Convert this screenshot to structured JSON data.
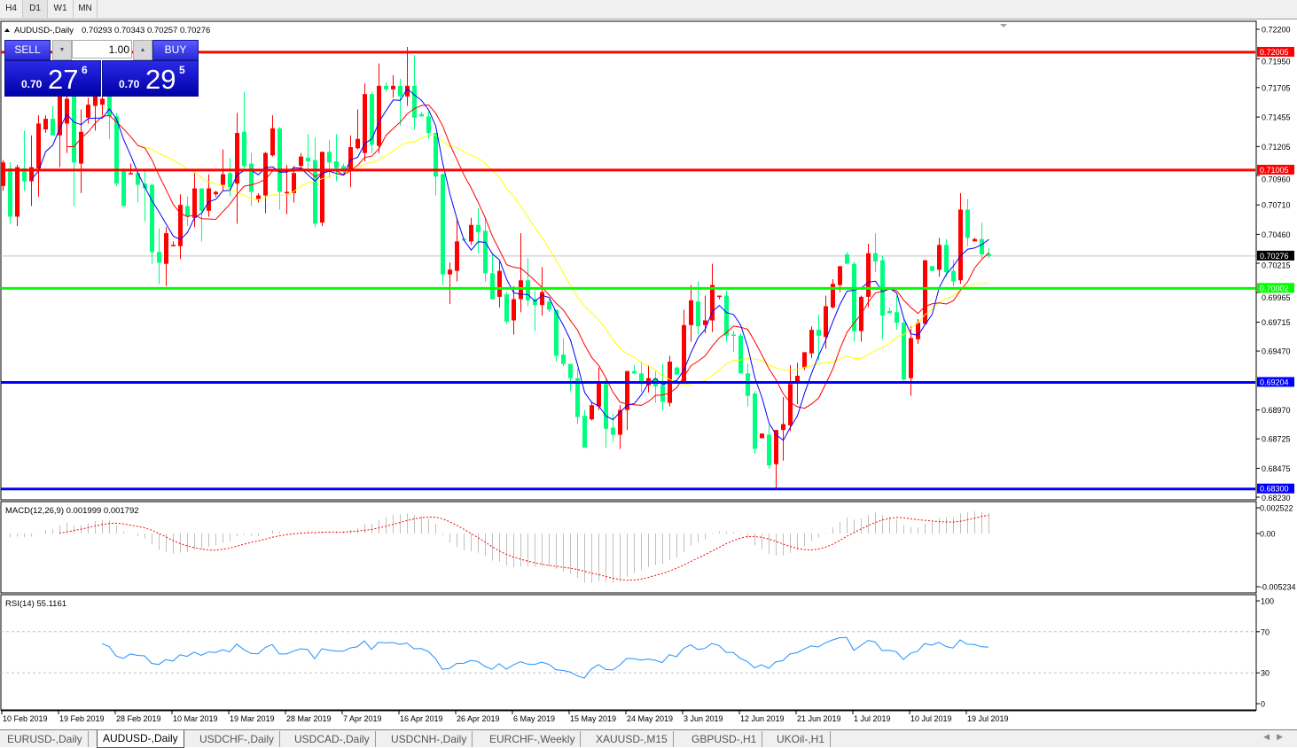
{
  "toolbar": {
    "timeframes": [
      {
        "label": "H4",
        "active": false
      },
      {
        "label": "D1",
        "active": true
      },
      {
        "label": "W1",
        "active": false
      },
      {
        "label": "MN",
        "active": false
      }
    ]
  },
  "chart_header": {
    "symbol": "AUDUSD-,Daily",
    "ohlc": "0.70293 0.70343 0.70257 0.70276"
  },
  "trade_panel": {
    "sell_label": "SELL",
    "buy_label": "BUY",
    "lot": "1.00",
    "sell_price": {
      "prefix": "0.70",
      "big": "27",
      "sup": "6"
    },
    "buy_price": {
      "prefix": "0.70",
      "big": "29",
      "sup": "5"
    }
  },
  "macd_label": "MACD(12,26,9) 0.001999 0.001792",
  "rsi_label": "RSI(14) 55.1161",
  "tabs": [
    {
      "label": "EURUSD-,Daily",
      "active": false
    },
    {
      "label": "AUDUSD-,Daily",
      "active": true
    },
    {
      "label": "USDCHF-,Daily",
      "active": false
    },
    {
      "label": "USDCAD-,Daily",
      "active": false
    },
    {
      "label": "USDCNH-,Daily",
      "active": false
    },
    {
      "label": "EURCHF-,Weekly",
      "active": false
    },
    {
      "label": "XAUUSD-,M15",
      "active": false
    },
    {
      "label": "GBPUSD-,H1",
      "active": false
    },
    {
      "label": "UKOil-,H1",
      "active": false
    }
  ],
  "colors": {
    "bull": "#ff0000",
    "bear": "#00ff7f",
    "ma_fast": "#0000ff",
    "ma_mid": "#ff0000",
    "ma_slow": "#ffff00",
    "macd_hist": "#c0c0c0",
    "macd_signal": "#ff0000",
    "rsi": "#1e90ff",
    "price_line": "#c0c0c0"
  },
  "chart_data": {
    "type": "candlestick",
    "symbol": "AUDUSD-",
    "timeframe": "Daily",
    "ylim": [
      0.6823,
      0.722
    ],
    "y_ticks": [
      "0.72200",
      "0.71950",
      "0.71705",
      "0.71455",
      "0.71205",
      "0.70960",
      "0.70710",
      "0.70460",
      "0.70215",
      "0.69965",
      "0.69715",
      "0.69470",
      "0.68970",
      "0.68725",
      "0.68475",
      "0.68230"
    ],
    "x_tick_labels": [
      "10 Feb 2019",
      "19 Feb 2019",
      "28 Feb 2019",
      "10 Mar 2019",
      "19 Mar 2019",
      "28 Mar 2019",
      "7 Apr 2019",
      "16 Apr 2019",
      "26 Apr 2019",
      "6 May 2019",
      "15 May 2019",
      "24 May 2019",
      "3 Jun 2019",
      "12 Jun 2019",
      "21 Jun 2019",
      "1 Jul 2019",
      "10 Jul 2019",
      "19 Jul 2019"
    ],
    "current_price": "0.70276",
    "horizontal_levels": [
      {
        "price": "0.72005",
        "color": "#ff0000"
      },
      {
        "price": "0.71005",
        "color": "#ff0000"
      },
      {
        "price": "0.70002",
        "color": "#00ff00"
      },
      {
        "price": "0.69204",
        "color": "#0000ff"
      },
      {
        "price": "0.68300",
        "color": "#0000ff"
      }
    ],
    "ohlc": [
      [
        0.7087,
        0.7109,
        0.7083,
        0.7107
      ],
      [
        0.7102,
        0.7107,
        0.7055,
        0.7061
      ],
      [
        0.7061,
        0.7105,
        0.7053,
        0.7103
      ],
      [
        0.7102,
        0.7134,
        0.7083,
        0.7091
      ],
      [
        0.7091,
        0.713,
        0.707,
        0.7103
      ],
      [
        0.7102,
        0.7147,
        0.7078,
        0.714
      ],
      [
        0.7135,
        0.7147,
        0.7132,
        0.7144
      ],
      [
        0.7144,
        0.7155,
        0.713,
        0.713
      ],
      [
        0.713,
        0.7169,
        0.7103,
        0.7164
      ],
      [
        0.714,
        0.7166,
        0.7115,
        0.7161
      ],
      [
        0.7164,
        0.7167,
        0.707,
        0.7107
      ],
      [
        0.7106,
        0.7152,
        0.7081,
        0.7133
      ],
      [
        0.7145,
        0.7162,
        0.714,
        0.7156
      ],
      [
        0.7155,
        0.7169,
        0.7134,
        0.7166
      ],
      [
        0.7156,
        0.7166,
        0.7147,
        0.7161
      ],
      [
        0.7164,
        0.7169,
        0.7127,
        0.7146
      ],
      [
        0.7146,
        0.7149,
        0.7087,
        0.7089
      ],
      [
        0.71,
        0.7102,
        0.707,
        0.707
      ],
      [
        0.7097,
        0.7106,
        0.7097,
        0.7098
      ],
      [
        0.7098,
        0.71,
        0.7073,
        0.7088
      ],
      [
        0.7089,
        0.71,
        0.7057,
        0.7085
      ],
      [
        0.7088,
        0.7089,
        0.7021,
        0.7031
      ],
      [
        0.7031,
        0.7051,
        0.7004,
        0.7022
      ],
      [
        0.7021,
        0.7052,
        0.7002,
        0.7047
      ],
      [
        0.7037,
        0.704,
        0.7036,
        0.7037
      ],
      [
        0.7036,
        0.708,
        0.7025,
        0.7071
      ],
      [
        0.707,
        0.7078,
        0.7053,
        0.7061
      ],
      [
        0.706,
        0.7098,
        0.7052,
        0.7085
      ],
      [
        0.7085,
        0.7085,
        0.704,
        0.7066
      ],
      [
        0.7066,
        0.7097,
        0.7061,
        0.7085
      ],
      [
        0.708,
        0.7083,
        0.7078,
        0.7082
      ],
      [
        0.7088,
        0.7118,
        0.7083,
        0.7097
      ],
      [
        0.7098,
        0.7111,
        0.7078,
        0.7086
      ],
      [
        0.7089,
        0.7149,
        0.7055,
        0.7132
      ],
      [
        0.7133,
        0.7167,
        0.7102,
        0.7104
      ],
      [
        0.7106,
        0.7115,
        0.707,
        0.7082
      ],
      [
        0.7076,
        0.7081,
        0.7073,
        0.7079
      ],
      [
        0.7079,
        0.7116,
        0.7064,
        0.7115
      ],
      [
        0.7113,
        0.7147,
        0.7112,
        0.7136
      ],
      [
        0.7136,
        0.7137,
        0.7067,
        0.7082
      ],
      [
        0.7082,
        0.7105,
        0.7063,
        0.7082
      ],
      [
        0.7081,
        0.7104,
        0.7073,
        0.7098
      ],
      [
        0.7104,
        0.7115,
        0.7102,
        0.7112
      ],
      [
        0.7111,
        0.7131,
        0.71,
        0.7108
      ],
      [
        0.7109,
        0.7128,
        0.7052,
        0.7055
      ],
      [
        0.7056,
        0.7116,
        0.7053,
        0.7116
      ],
      [
        0.7116,
        0.7126,
        0.7094,
        0.7107
      ],
      [
        0.7108,
        0.7131,
        0.7091,
        0.7102
      ],
      [
        0.7104,
        0.7106,
        0.7096,
        0.7101
      ],
      [
        0.71,
        0.713,
        0.7086,
        0.712
      ],
      [
        0.7119,
        0.7152,
        0.7118,
        0.7127
      ],
      [
        0.7115,
        0.7174,
        0.7108,
        0.7165
      ],
      [
        0.7165,
        0.7167,
        0.7115,
        0.7122
      ],
      [
        0.7121,
        0.7191,
        0.7115,
        0.7172
      ],
      [
        0.7172,
        0.7175,
        0.7167,
        0.7169
      ],
      [
        0.7169,
        0.7181,
        0.7162,
        0.7172
      ],
      [
        0.7172,
        0.7178,
        0.7138,
        0.7163
      ],
      [
        0.7163,
        0.7205,
        0.7155,
        0.7172
      ],
      [
        0.7172,
        0.7198,
        0.7135,
        0.7145
      ],
      [
        0.7148,
        0.715,
        0.7146,
        0.7146
      ],
      [
        0.7146,
        0.715,
        0.7127,
        0.7132
      ],
      [
        0.7132,
        0.7132,
        0.7079,
        0.7095
      ],
      [
        0.7097,
        0.7098,
        0.7003,
        0.7012
      ],
      [
        0.7012,
        0.7022,
        0.6987,
        0.7016
      ],
      [
        0.7015,
        0.706,
        0.7006,
        0.704
      ],
      [
        0.7042,
        0.7043,
        0.704,
        0.7041
      ],
      [
        0.704,
        0.706,
        0.7037,
        0.7054
      ],
      [
        0.7054,
        0.7068,
        0.703,
        0.7048
      ],
      [
        0.7049,
        0.7061,
        0.7006,
        0.7013
      ],
      [
        0.7013,
        0.7029,
        0.6991,
        0.6991
      ],
      [
        0.6993,
        0.7023,
        0.6984,
        0.7015
      ],
      [
        0.6995,
        0.6997,
        0.697,
        0.6972
      ],
      [
        0.6973,
        0.7002,
        0.6961,
        0.6991
      ],
      [
        0.6991,
        0.7047,
        0.698,
        0.7007
      ],
      [
        0.7007,
        0.7026,
        0.6985,
        0.699
      ],
      [
        0.6991,
        0.6998,
        0.6964,
        0.6986
      ],
      [
        0.6986,
        0.7018,
        0.6977,
        0.6997
      ],
      [
        0.6989,
        0.6991,
        0.698,
        0.6982
      ],
      [
        0.6982,
        0.6982,
        0.6938,
        0.6943
      ],
      [
        0.6944,
        0.6958,
        0.6934,
        0.6936
      ],
      [
        0.6936,
        0.6936,
        0.6913,
        0.6924
      ],
      [
        0.6924,
        0.6932,
        0.6885,
        0.6891
      ],
      [
        0.6892,
        0.6897,
        0.6865,
        0.6865
      ],
      [
        0.6889,
        0.6904,
        0.6888,
        0.6901
      ],
      [
        0.69,
        0.6933,
        0.6897,
        0.6921
      ],
      [
        0.6919,
        0.6923,
        0.6865,
        0.6881
      ],
      [
        0.6882,
        0.6894,
        0.687,
        0.6876
      ],
      [
        0.6876,
        0.6901,
        0.6864,
        0.6897
      ],
      [
        0.6897,
        0.693,
        0.688,
        0.693
      ],
      [
        0.693,
        0.6935,
        0.6927,
        0.6928
      ],
      [
        0.6928,
        0.6938,
        0.6912,
        0.6919
      ],
      [
        0.6918,
        0.6935,
        0.6912,
        0.6924
      ],
      [
        0.6924,
        0.693,
        0.6903,
        0.6917
      ],
      [
        0.6918,
        0.6936,
        0.6897,
        0.6904
      ],
      [
        0.6903,
        0.6943,
        0.69,
        0.6938
      ],
      [
        0.6933,
        0.6934,
        0.6927,
        0.6927
      ],
      [
        0.6921,
        0.6982,
        0.692,
        0.6969
      ],
      [
        0.6969,
        0.7003,
        0.6955,
        0.699
      ],
      [
        0.6989,
        0.7006,
        0.6961,
        0.6968
      ],
      [
        0.6969,
        0.6994,
        0.6962,
        0.6973
      ],
      [
        0.6973,
        0.7021,
        0.6963,
        0.7003
      ],
      [
        0.6993,
        0.6994,
        0.6991,
        0.6994
      ],
      [
        0.6994,
        0.6998,
        0.6955,
        0.696
      ],
      [
        0.6961,
        0.6964,
        0.6946,
        0.696
      ],
      [
        0.696,
        0.6962,
        0.6928,
        0.6928
      ],
      [
        0.6928,
        0.6936,
        0.69,
        0.6909
      ],
      [
        0.6911,
        0.6913,
        0.686,
        0.6864
      ],
      [
        0.6873,
        0.6877,
        0.6873,
        0.6877
      ],
      [
        0.6876,
        0.6884,
        0.6847,
        0.685
      ],
      [
        0.6851,
        0.688,
        0.683,
        0.688
      ],
      [
        0.688,
        0.6908,
        0.6854,
        0.6885
      ],
      [
        0.6884,
        0.6935,
        0.6879,
        0.6919
      ],
      [
        0.6921,
        0.6937,
        0.6902,
        0.6926
      ],
      [
        0.6933,
        0.6946,
        0.6931,
        0.6946
      ],
      [
        0.6945,
        0.6968,
        0.6941,
        0.6965
      ],
      [
        0.6965,
        0.6978,
        0.6939,
        0.696
      ],
      [
        0.6959,
        0.6994,
        0.6949,
        0.6985
      ],
      [
        0.6984,
        0.7008,
        0.6983,
        0.7004
      ],
      [
        0.7003,
        0.7019,
        0.6997,
        0.7019
      ],
      [
        0.7029,
        0.7031,
        0.7021,
        0.7021
      ],
      [
        0.7021,
        0.7023,
        0.6955,
        0.6964
      ],
      [
        0.6964,
        0.6994,
        0.6955,
        0.6993
      ],
      [
        0.6993,
        0.7038,
        0.6984,
        0.703
      ],
      [
        0.703,
        0.7047,
        0.7014,
        0.7023
      ],
      [
        0.7024,
        0.7028,
        0.6957,
        0.6977
      ],
      [
        0.6981,
        0.6984,
        0.6979,
        0.6979
      ],
      [
        0.698,
        0.6994,
        0.6965,
        0.6971
      ],
      [
        0.6971,
        0.6974,
        0.6922,
        0.6923
      ],
      [
        0.6924,
        0.6968,
        0.6909,
        0.6958
      ],
      [
        0.6957,
        0.6974,
        0.6953,
        0.6971
      ],
      [
        0.697,
        0.7024,
        0.697,
        0.7024
      ],
      [
        0.7019,
        0.7019,
        0.7015,
        0.7015
      ],
      [
        0.7016,
        0.7043,
        0.701,
        0.7037
      ],
      [
        0.7037,
        0.7042,
        0.701,
        0.7014
      ],
      [
        0.7015,
        0.7024,
        0.7002,
        0.7006
      ],
      [
        0.7007,
        0.7081,
        0.7004,
        0.7067
      ],
      [
        0.7067,
        0.7076,
        0.7036,
        0.7043
      ],
      [
        0.704,
        0.7043,
        0.704,
        0.7042
      ],
      [
        0.7042,
        0.7056,
        0.7026,
        0.7029
      ],
      [
        0.70293,
        0.70343,
        0.70257,
        0.70276
      ]
    ],
    "macd": {
      "params": "12,26,9",
      "ylim": [
        -0.005234,
        0.002522
      ],
      "y_ticks": [
        "0.002522",
        "0.00",
        "-0.005234"
      ]
    },
    "rsi": {
      "period": 14,
      "ylim": [
        0,
        100
      ],
      "levels": [
        70,
        30
      ],
      "y_ticks": [
        "100",
        "70",
        "30",
        "0"
      ]
    }
  }
}
